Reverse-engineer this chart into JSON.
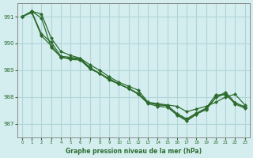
{
  "title": "Graphe pression niveau de la mer (hPa)",
  "bg_color": "#d4eef0",
  "grid_color": "#b0d4d8",
  "line_color": "#2d6b2d",
  "x_labels": [
    0,
    1,
    2,
    3,
    4,
    5,
    6,
    7,
    8,
    9,
    10,
    11,
    12,
    13,
    14,
    15,
    16,
    17,
    18,
    19,
    20,
    21,
    22,
    23
  ],
  "ylim": [
    986.5,
    991.5
  ],
  "yticks": [
    987,
    988,
    989,
    990,
    991
  ],
  "series1": [
    991.0,
    991.2,
    991.1,
    990.2,
    989.7,
    989.55,
    989.45,
    989.2,
    989.0,
    988.75,
    988.55,
    988.4,
    988.25,
    987.8,
    987.75,
    987.7,
    987.65,
    987.45,
    987.55,
    987.65,
    987.8,
    988.0,
    988.1,
    987.7
  ],
  "series2": [
    991.0,
    991.2,
    990.95,
    989.85,
    989.5,
    989.4,
    989.38,
    989.05,
    988.88,
    988.68,
    988.48,
    988.32,
    988.1,
    987.78,
    987.72,
    987.67,
    987.35,
    987.15,
    987.37,
    987.52,
    987.98,
    988.18,
    987.78,
    987.62
  ],
  "series3": [
    991.0,
    991.18,
    990.35,
    990.05,
    989.52,
    989.48,
    989.44,
    989.1,
    988.88,
    988.68,
    988.48,
    988.32,
    988.13,
    987.8,
    987.7,
    987.68,
    987.38,
    987.18,
    987.4,
    987.58,
    988.08,
    988.08,
    987.78,
    987.63
  ],
  "series4": [
    991.0,
    991.15,
    990.28,
    989.92,
    989.48,
    989.44,
    989.4,
    989.07,
    988.88,
    988.63,
    988.48,
    988.32,
    988.1,
    987.75,
    987.65,
    987.62,
    987.32,
    987.1,
    987.35,
    987.55,
    987.98,
    988.12,
    987.73,
    987.58
  ]
}
